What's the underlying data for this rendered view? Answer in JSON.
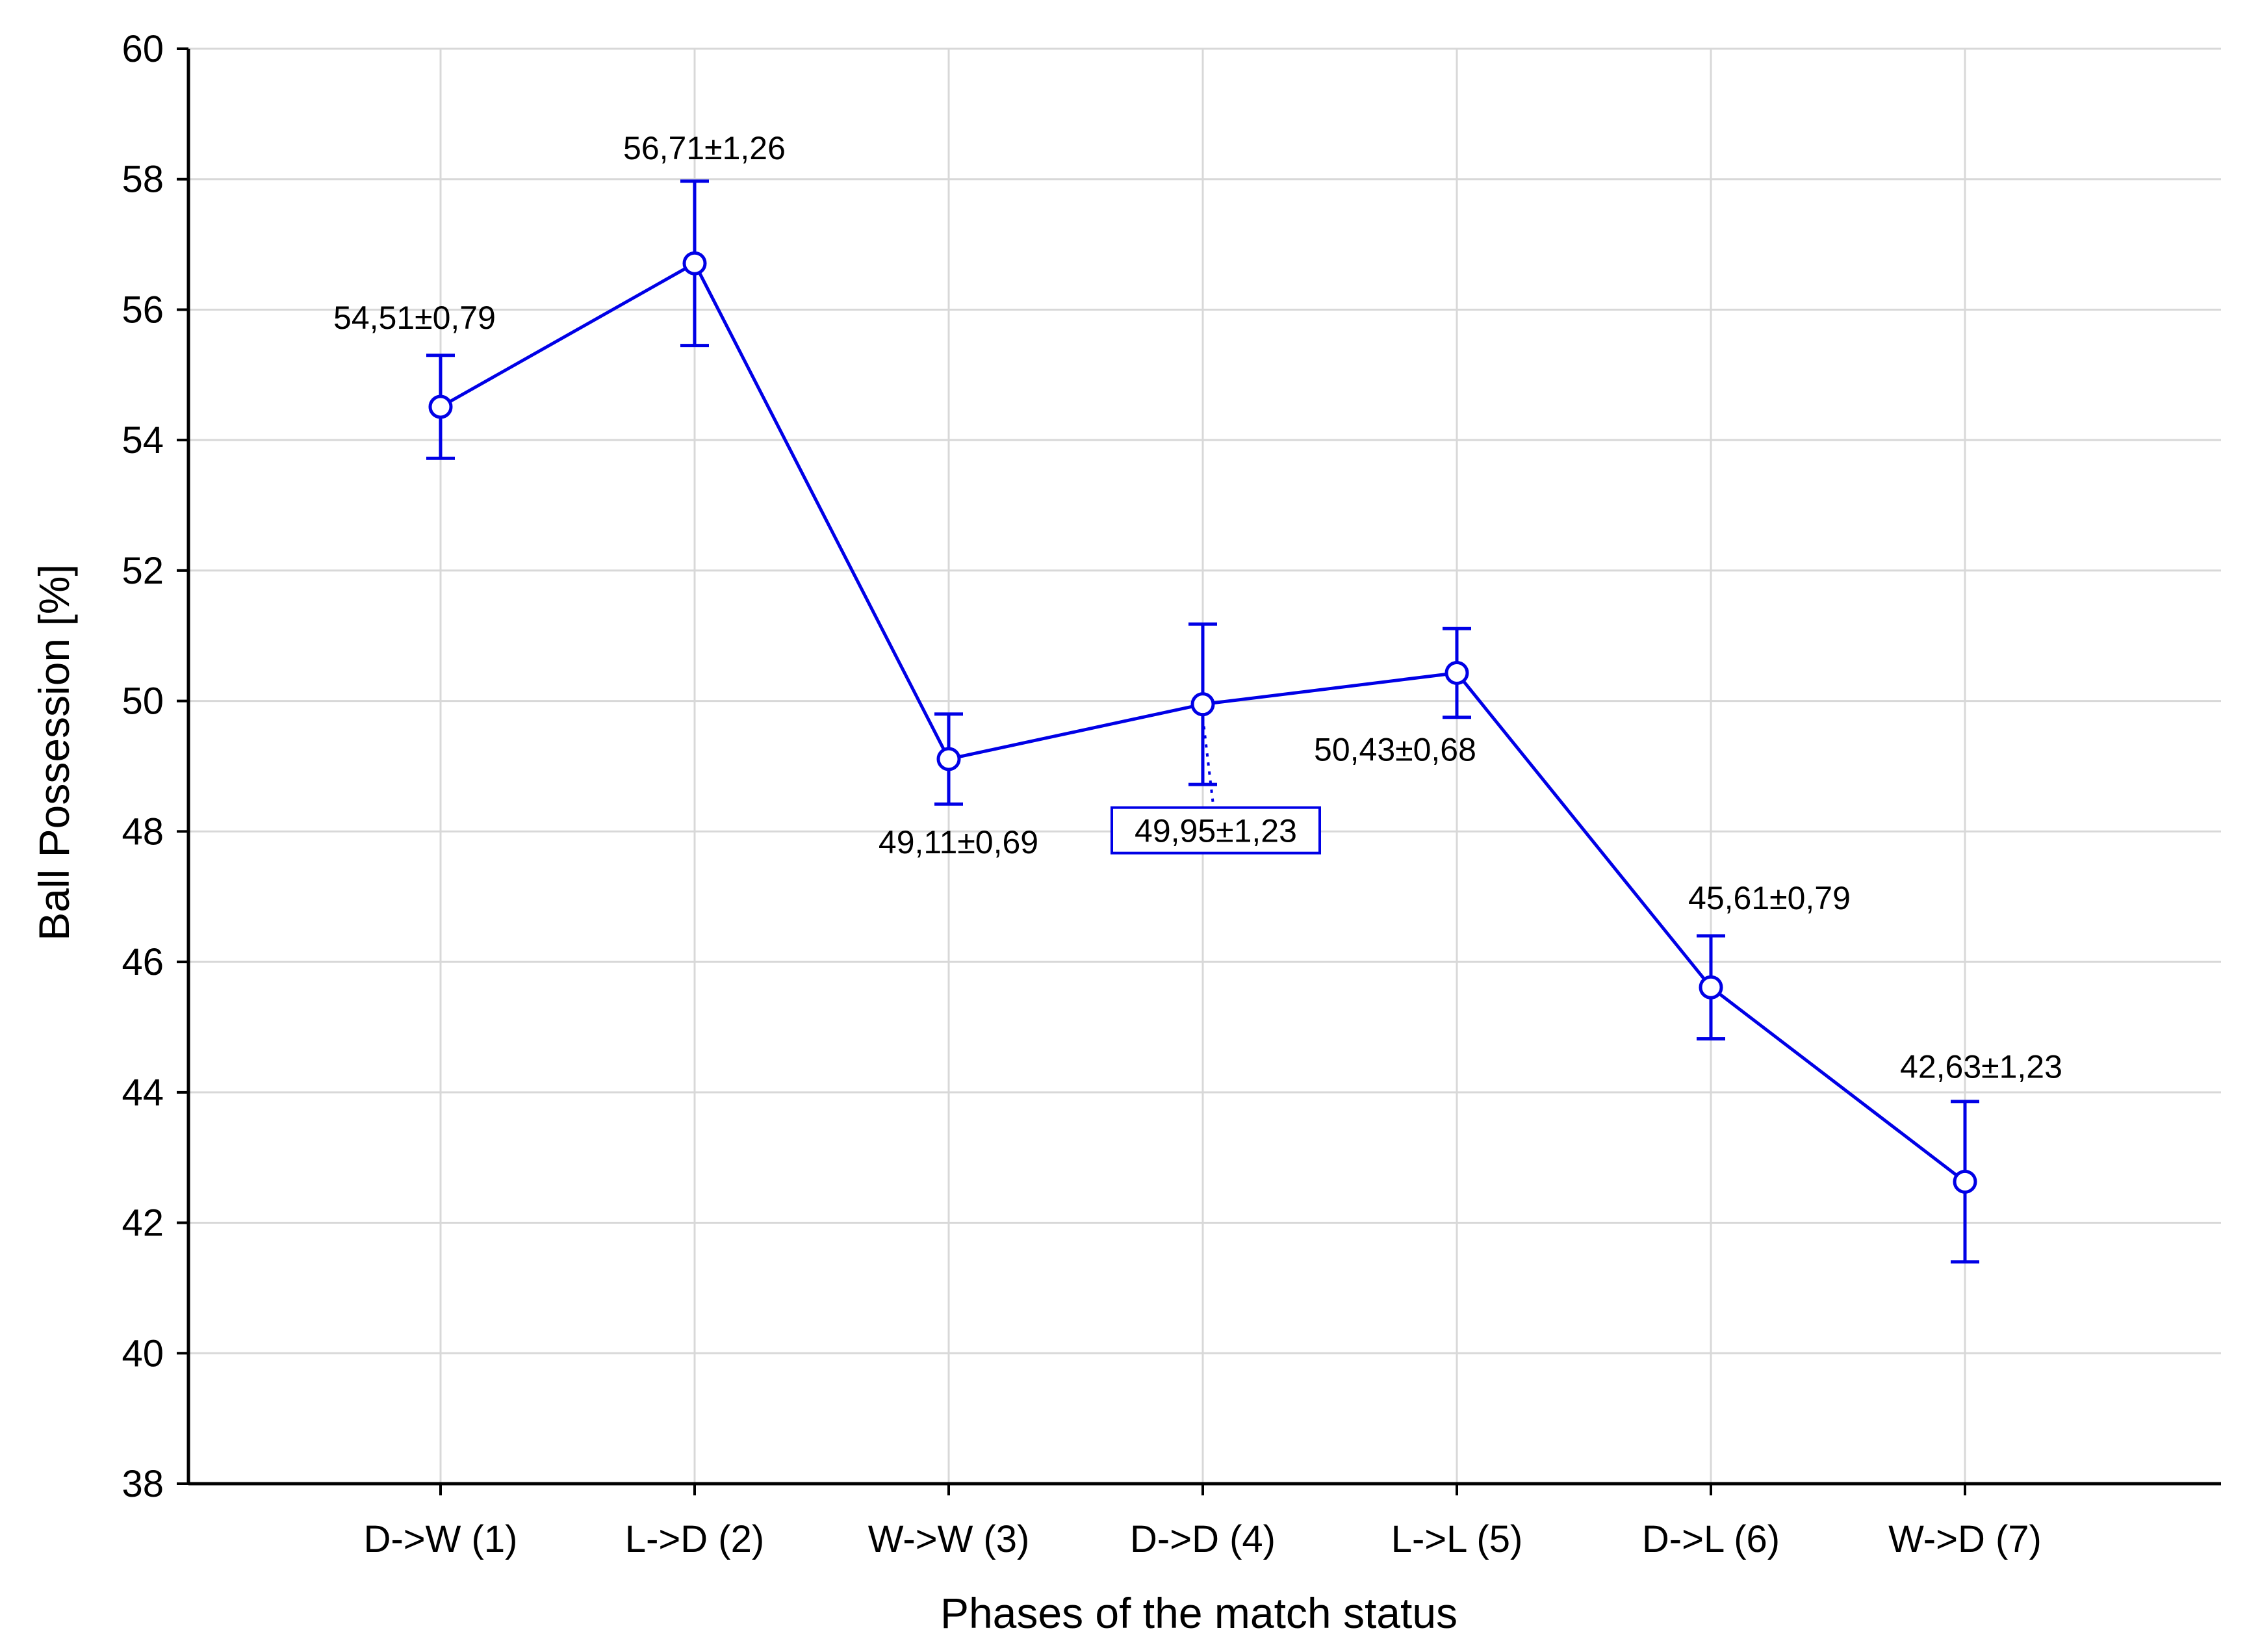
{
  "chart_data": {
    "type": "line",
    "xlabel": "Phases of the match status",
    "ylabel": "Ball Possession [%]",
    "ylim": [
      38,
      60
    ],
    "y_ticks": [
      38,
      40,
      42,
      44,
      46,
      48,
      50,
      52,
      54,
      56,
      58,
      60
    ],
    "categories": [
      "D->W (1)",
      "L->D (2)",
      "W->W (3)",
      "D->D (4)",
      "L->L (5)",
      "D->L (6)",
      "W->D (7)"
    ],
    "series": [
      {
        "values": [
          54.51,
          56.71,
          49.11,
          49.95,
          50.43,
          45.61,
          42.63
        ],
        "errors": [
          0.79,
          1.26,
          0.69,
          1.23,
          0.68,
          0.79,
          1.23
        ],
        "labels": [
          "54,51±0,79",
          "56,71±1,26",
          "49,11±0,69",
          "49,95±1,23",
          "50,43±0,68",
          "45,61±0,79",
          "42,63±1,23"
        ],
        "color": "#0000e6"
      }
    ],
    "grid": true,
    "highlighted_label_index": 3
  }
}
